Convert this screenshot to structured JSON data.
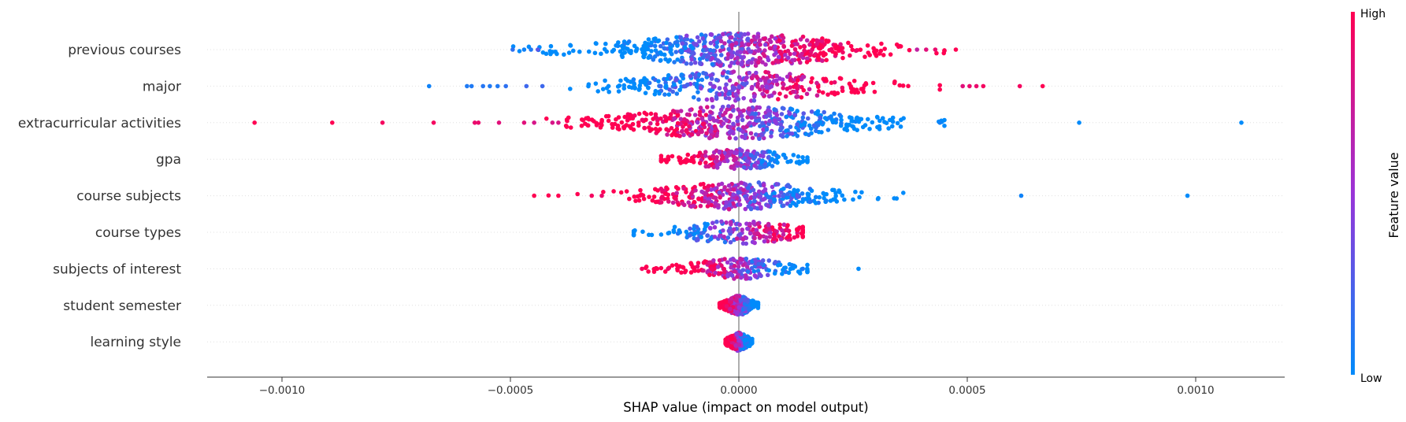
{
  "chart_data": {
    "type": "scatter",
    "title": "",
    "xlabel": "SHAP value (impact on model output)",
    "xlim": [
      -0.00117,
      0.00121
    ],
    "xticks": [
      {
        "value": -0.001,
        "label": "−0.0010"
      },
      {
        "value": -0.0005,
        "label": "−0.0005"
      },
      {
        "value": 0.0,
        "label": "0.0000"
      },
      {
        "value": 0.0005,
        "label": "0.0005"
      },
      {
        "value": 0.001,
        "label": "0.0010"
      }
    ],
    "features": [
      {
        "name": "previous courses",
        "low_side": "left",
        "core_sd": 0.00017,
        "core_min": -0.0005,
        "core_max": 0.00045,
        "n_core": 560,
        "spread": 0.05,
        "outliers": [
          [
            -0.000495,
            0.15
          ],
          [
            -0.00047,
            0.05
          ],
          [
            -0.000455,
            0.1
          ],
          [
            -0.00044,
            0.3
          ],
          [
            0.00039,
            0.7
          ],
          [
            0.00041,
            0.85
          ],
          [
            0.00043,
            0.9
          ],
          [
            0.000475,
            1.0
          ]
        ]
      },
      {
        "name": "major",
        "low_side": "left",
        "core_sd": 0.00016,
        "core_min": -0.00044,
        "core_max": 0.00044,
        "n_core": 330,
        "spread": 0.022,
        "outliers": [
          [
            -0.000678,
            0.05
          ],
          [
            -0.000595,
            0.1
          ],
          [
            -0.000585,
            0.1
          ],
          [
            -0.00056,
            0.12
          ],
          [
            -0.000545,
            0.1
          ],
          [
            -0.000528,
            0.1
          ],
          [
            -0.00051,
            0.15
          ],
          [
            -0.000465,
            0.2
          ],
          [
            -0.00043,
            0.2
          ],
          [
            0.00049,
            0.85
          ],
          [
            0.000505,
            0.9
          ],
          [
            0.00052,
            0.9
          ],
          [
            0.000535,
            0.95
          ],
          [
            0.000615,
            0.95
          ],
          [
            0.000665,
            1.0
          ]
        ]
      },
      {
        "name": "extracurricular activities",
        "low_side": "right",
        "core_sd": 0.00017,
        "core_min": -0.00052,
        "core_max": 0.00045,
        "n_core": 500,
        "spread": 0.05,
        "outliers": [
          [
            -0.00106,
            1.0
          ],
          [
            -0.00089,
            1.0
          ],
          [
            -0.00078,
            0.95
          ],
          [
            -0.000668,
            0.95
          ],
          [
            -0.000578,
            0.9
          ],
          [
            -0.00057,
            0.9
          ],
          [
            -0.000525,
            0.85
          ],
          [
            -0.00047,
            0.85
          ],
          [
            -0.000448,
            0.8
          ],
          [
            -0.000408,
            0.8
          ],
          [
            -0.000395,
            0.8
          ],
          [
            0.00044,
            0.05
          ],
          [
            0.000745,
            0.0
          ],
          [
            0.0011,
            0.0
          ]
        ]
      },
      {
        "name": "gpa",
        "low_side": "right",
        "core_sd": 8e-05,
        "core_min": -0.00017,
        "core_max": 0.00015,
        "n_core": 220,
        "spread": 0.03,
        "outliers": []
      },
      {
        "name": "course subjects",
        "low_side": "right",
        "core_sd": 0.00013,
        "core_min": -0.00042,
        "core_max": 0.00036,
        "n_core": 360,
        "spread": 0.045,
        "outliers": [
          [
            -0.000448,
            1.0
          ],
          [
            -0.000395,
            1.0
          ],
          [
            -0.000322,
            0.95
          ],
          [
            -0.0003,
            0.9
          ],
          [
            0.000618,
            0.05
          ],
          [
            0.000982,
            0.0
          ]
        ]
      },
      {
        "name": "course types",
        "low_side": "left",
        "core_sd": 0.0001,
        "core_min": -0.00023,
        "core_max": 0.00014,
        "n_core": 200,
        "spread": 0.035,
        "outliers": []
      },
      {
        "name": "subjects of interest",
        "low_side": "right",
        "core_sd": 8e-05,
        "core_min": -0.00022,
        "core_max": 0.00015,
        "n_core": 200,
        "spread": 0.045,
        "outliers": [
          [
            -0.000212,
            0.95
          ],
          [
            -0.000155,
            0.9
          ],
          [
            0.00014,
            0.1
          ],
          [
            0.000262,
            0.0
          ]
        ]
      },
      {
        "name": "student semester",
        "low_side": "right",
        "core_sd": 2e-05,
        "core_min": -4.2e-05,
        "core_max": 4.2e-05,
        "n_core": 320,
        "spread": 0.14,
        "outliers": []
      },
      {
        "name": "learning style",
        "low_side": "right",
        "core_sd": 1.5e-05,
        "core_min": -2.9e-05,
        "core_max": 2.9e-05,
        "n_core": 260,
        "spread": 0.14,
        "outliers": []
      }
    ],
    "colorbar": {
      "high_label": "High",
      "low_label": "Low",
      "title": "Feature value",
      "low_color": "#008bfb",
      "mid_color": "#8c3bf0",
      "high_color": "#ff0052"
    },
    "zero_line_color": "#999999",
    "grid": false,
    "legend": "right"
  }
}
